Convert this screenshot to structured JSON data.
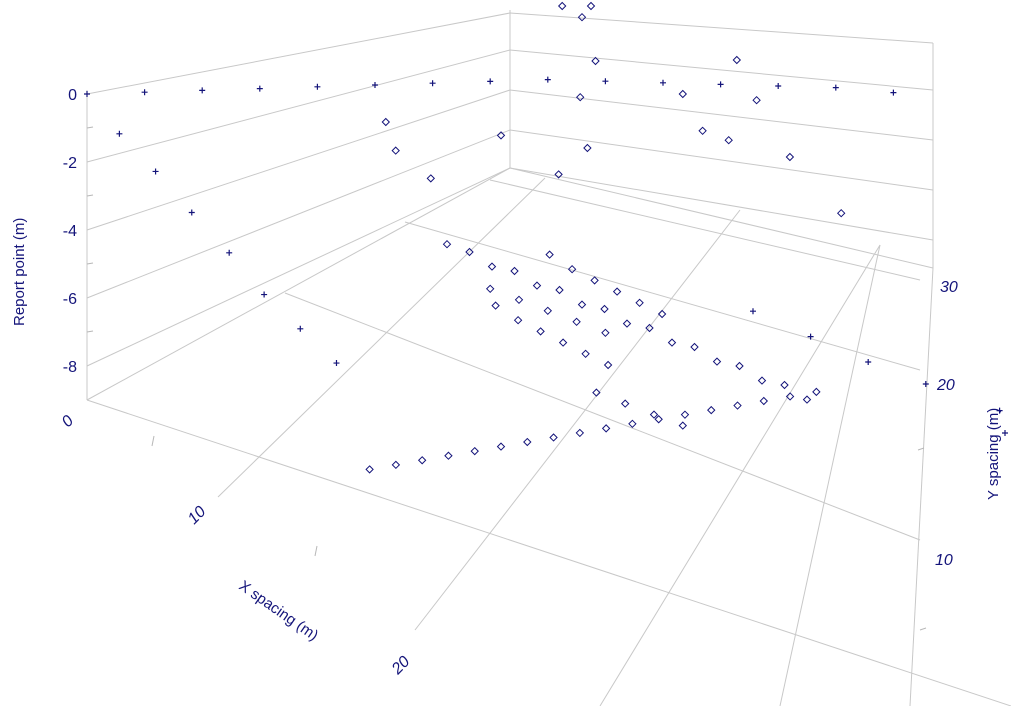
{
  "chart_data": {
    "type": "scatter",
    "projection": "3d",
    "axes": {
      "x": {
        "label": "X spacing (m)",
        "ticks": [
          "0",
          "10",
          "20"
        ]
      },
      "y": {
        "label": "Y spacing (m)",
        "ticks": [
          "10",
          "20",
          "30"
        ]
      },
      "z": {
        "label": "Report point (m)",
        "ticks": [
          "0",
          "-2",
          "-4",
          "-6",
          "-8"
        ]
      }
    },
    "series": [
      {
        "marker": "diamond",
        "points": [
          [
            12,
            7,
            -8.5
          ],
          [
            13,
            7.8,
            -8.2
          ],
          [
            14,
            8.6,
            -7.9
          ],
          [
            15,
            9.4,
            -7.6
          ],
          [
            16,
            10.2,
            -7.3
          ],
          [
            17,
            11,
            -7
          ],
          [
            18,
            11.8,
            -6.7
          ],
          [
            19,
            12.6,
            -6.4
          ],
          [
            20,
            13.4,
            -6.1
          ],
          [
            21,
            14.2,
            -5.8
          ],
          [
            22,
            15,
            -5.5
          ],
          [
            23,
            15.8,
            -5.2
          ],
          [
            24,
            16.6,
            -4.9
          ],
          [
            25,
            17.4,
            -4.6
          ],
          [
            26,
            18.2,
            -4.3
          ],
          [
            27,
            19,
            -4
          ],
          [
            28,
            19.8,
            -3.7
          ],
          [
            29,
            20.6,
            -3.4
          ],
          [
            9,
            17,
            -5
          ],
          [
            10,
            17.5,
            -5
          ],
          [
            11,
            18,
            -5.2
          ],
          [
            12,
            18.5,
            -5.1
          ],
          [
            13,
            19,
            -5.3
          ],
          [
            14,
            19.5,
            -5.2
          ],
          [
            15,
            20,
            -5.4
          ],
          [
            16,
            20.5,
            -5.3
          ],
          [
            17,
            21,
            -5.5
          ],
          [
            18,
            21.5,
            -5.4
          ],
          [
            19,
            22,
            -5.6
          ],
          [
            20,
            22.5,
            -5.5
          ],
          [
            21,
            23,
            -5.7
          ],
          [
            22,
            23.5,
            -5.6
          ],
          [
            23,
            24,
            -5.8
          ],
          [
            24,
            24.5,
            -5.7
          ],
          [
            25,
            25,
            -5.9
          ],
          [
            12,
            17,
            -5.8
          ],
          [
            13,
            17.5,
            -6
          ],
          [
            14,
            18,
            -6.1
          ],
          [
            15,
            18.5,
            -6.2
          ],
          [
            16,
            19,
            -6.3
          ],
          [
            17,
            19.5,
            -6.4
          ],
          [
            13,
            20,
            -4.6
          ],
          [
            14,
            20.5,
            -4.8
          ],
          [
            15,
            21,
            -4.9
          ],
          [
            16,
            21.5,
            -5
          ],
          [
            17,
            22,
            -5.1
          ],
          [
            18,
            22.5,
            -5.2
          ],
          [
            14,
            14,
            -4
          ],
          [
            15,
            15,
            -4.2
          ],
          [
            16,
            16,
            -4.4
          ],
          [
            17,
            17,
            -4.6
          ],
          [
            18,
            18,
            -4.8
          ],
          [
            19,
            16,
            -5.8
          ],
          [
            20,
            17,
            -6
          ],
          [
            21,
            18,
            -6.2
          ],
          [
            22,
            19,
            -6.4
          ],
          [
            8,
            29,
            -1.2
          ],
          [
            10,
            27.5,
            -1.5
          ],
          [
            11,
            25,
            -1.7
          ],
          [
            13,
            23,
            -2.1
          ],
          [
            15,
            28,
            -0.9
          ],
          [
            17,
            27,
            -1.1
          ],
          [
            19,
            26.5,
            -0.6
          ],
          [
            22,
            27.5,
            -0.3
          ],
          [
            6,
            30,
            -0.2
          ],
          [
            7,
            31,
            -0.4
          ],
          [
            16,
            31,
            -0.2
          ],
          [
            18,
            30,
            -0.5
          ],
          [
            6,
            16,
            -2.2
          ],
          [
            7,
            15.5,
            -2.6
          ],
          [
            8,
            17,
            -3.4
          ],
          [
            10,
            20,
            -2.1
          ],
          [
            12,
            22,
            -3
          ],
          [
            24,
            29,
            -1.6
          ]
        ]
      },
      {
        "marker": "plus",
        "points": [
          [
            0,
            0,
            0
          ],
          [
            2,
            2,
            0.3
          ],
          [
            4,
            4,
            0.6
          ],
          [
            6,
            6,
            0.9
          ],
          [
            8,
            8,
            1.2
          ],
          [
            10,
            10,
            1.5
          ],
          [
            12,
            12,
            1.8
          ],
          [
            14,
            14,
            2.1
          ],
          [
            16,
            16,
            2.4
          ],
          [
            18,
            18,
            2.6
          ],
          [
            20,
            20,
            2.8
          ],
          [
            22,
            22,
            3
          ],
          [
            24,
            24,
            3.2
          ],
          [
            26,
            26,
            3.4
          ],
          [
            28,
            28,
            3.5
          ],
          [
            2,
            0,
            -0.5
          ],
          [
            4,
            0.3,
            -1
          ],
          [
            6,
            0.6,
            -1.6
          ],
          [
            8,
            1,
            -2.2
          ],
          [
            10,
            1.2,
            -2.8
          ],
          [
            12,
            1.5,
            -3.2
          ],
          [
            14,
            1.8,
            -3.6
          ],
          [
            24,
            22,
            -3
          ],
          [
            26,
            24,
            -3.5
          ],
          [
            28,
            26,
            -4
          ],
          [
            30,
            28,
            -4.4
          ],
          [
            33,
            30,
            -4.6
          ],
          [
            35,
            31,
            -4.8
          ]
        ]
      }
    ]
  }
}
